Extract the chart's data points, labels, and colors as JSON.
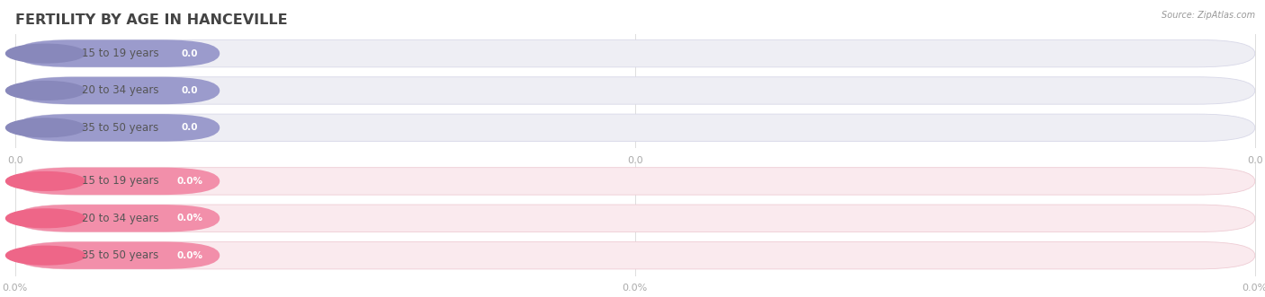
{
  "title": "FERTILITY BY AGE IN HANCEVILLE",
  "source_text": "Source: ZipAtlas.com",
  "top_section": {
    "categories": [
      "15 to 19 years",
      "20 to 34 years",
      "35 to 50 years"
    ],
    "values": [
      0.0,
      0.0,
      0.0
    ],
    "bar_fg_color": "#9b9bcc",
    "bar_bg_color": "#eeeef4",
    "bar_border_color": "#d8d8e8",
    "circle_color": "#8888bb",
    "value_text_color": "#ffffff",
    "label_text_color": "#555555",
    "tick_color": "#aaaaaa",
    "tick_labels": [
      "0.0",
      "0.0",
      "0.0"
    ]
  },
  "bottom_section": {
    "categories": [
      "15 to 19 years",
      "20 to 34 years",
      "35 to 50 years"
    ],
    "values": [
      0.0,
      0.0,
      0.0
    ],
    "bar_fg_color": "#f28faa",
    "bar_bg_color": "#faeaee",
    "bar_border_color": "#eeccd4",
    "circle_color": "#ee6688",
    "value_text_color": "#ffffff",
    "label_text_color": "#555555",
    "tick_color": "#aaaaaa",
    "tick_labels": [
      "0.0%",
      "0.0%",
      "0.0%"
    ]
  },
  "bg_color": "#ffffff",
  "grid_color": "#dddddd",
  "title_color": "#444444",
  "source_color": "#999999",
  "fig_width": 14.06,
  "fig_height": 3.31,
  "dpi": 100
}
